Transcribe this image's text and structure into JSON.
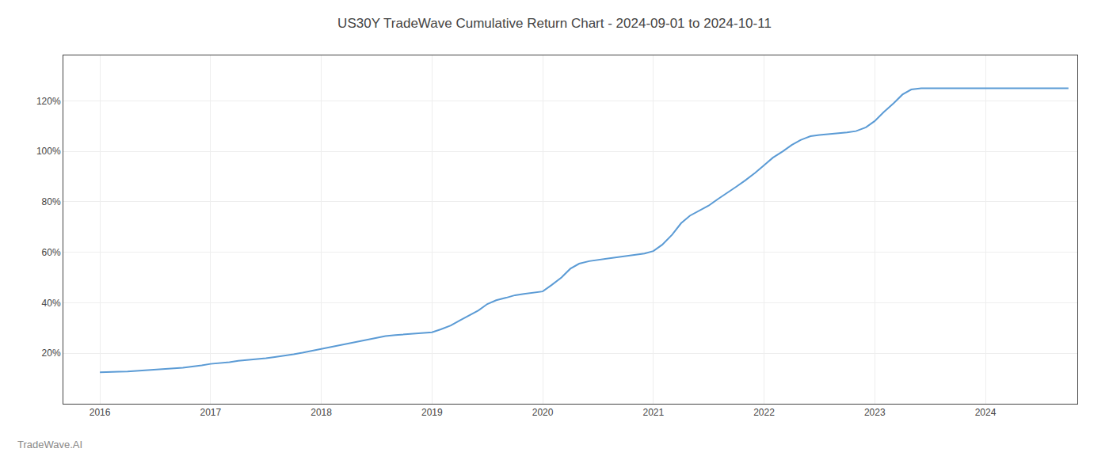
{
  "chart_data": {
    "type": "line",
    "title": "US30Y TradeWave Cumulative Return Chart - 2024-09-01 to 2024-10-11",
    "annotations": [
      "TradeWave.AI"
    ],
    "x": [
      2016.0,
      2016.08,
      2016.17,
      2016.25,
      2016.33,
      2016.42,
      2016.5,
      2016.58,
      2016.67,
      2016.75,
      2016.83,
      2016.92,
      2017.0,
      2017.08,
      2017.17,
      2017.25,
      2017.33,
      2017.42,
      2017.5,
      2017.58,
      2017.67,
      2017.75,
      2017.83,
      2017.92,
      2018.0,
      2018.08,
      2018.17,
      2018.25,
      2018.33,
      2018.42,
      2018.5,
      2018.58,
      2018.67,
      2018.75,
      2018.83,
      2018.92,
      2019.0,
      2019.08,
      2019.17,
      2019.25,
      2019.33,
      2019.42,
      2019.5,
      2019.58,
      2019.67,
      2019.75,
      2019.83,
      2019.92,
      2020.0,
      2020.08,
      2020.17,
      2020.25,
      2020.33,
      2020.42,
      2020.5,
      2020.58,
      2020.67,
      2020.75,
      2020.83,
      2020.92,
      2021.0,
      2021.08,
      2021.17,
      2021.25,
      2021.33,
      2021.42,
      2021.5,
      2021.58,
      2021.67,
      2021.75,
      2021.83,
      2021.92,
      2022.0,
      2022.08,
      2022.17,
      2022.25,
      2022.33,
      2022.42,
      2022.5,
      2022.58,
      2022.67,
      2022.75,
      2022.83,
      2022.92,
      2023.0,
      2023.08,
      2023.17,
      2023.25,
      2023.33,
      2023.42,
      2023.5,
      2023.58,
      2023.67,
      2023.75,
      2023.83,
      2023.92,
      2024.0,
      2024.08,
      2024.17,
      2024.25,
      2024.33,
      2024.42,
      2024.5,
      2024.58,
      2024.67,
      2024.75
    ],
    "values": [
      12.5,
      12.5,
      12.7,
      12.8,
      13.0,
      13.2,
      13.5,
      13.8,
      14.0,
      14.3,
      14.7,
      15.2,
      15.8,
      16.1,
      16.5,
      17.0,
      17.3,
      17.6,
      18.0,
      18.5,
      19.0,
      19.6,
      20.2,
      21.0,
      21.8,
      22.5,
      23.2,
      24.0,
      24.8,
      25.5,
      26.3,
      26.8,
      27.2,
      27.5,
      27.8,
      28.0,
      28.3,
      29.5,
      31.0,
      33.0,
      35.0,
      37.0,
      39.5,
      41.0,
      42.0,
      43.0,
      43.5,
      44.0,
      44.5,
      47.0,
      50.0,
      53.5,
      55.5,
      56.5,
      57.0,
      57.5,
      58.0,
      58.5,
      59.0,
      59.5,
      60.5,
      63.0,
      67.0,
      71.5,
      74.5,
      76.5,
      78.5,
      81.0,
      83.5,
      86.0,
      88.5,
      91.5,
      94.5,
      97.5,
      100.0,
      102.5,
      104.5,
      106.0,
      106.5,
      106.8,
      107.0,
      107.5,
      108.0,
      109.5,
      112.0,
      115.5,
      119.0,
      122.5,
      124.5,
      125.0,
      125.0,
      125.0,
      125.0,
      125.0,
      125.0,
      125.0,
      125.0,
      125.0,
      125.0,
      125.0,
      125.0,
      125.0,
      125.0,
      125.0,
      125.0,
      125.0
    ],
    "color": "#5b9bd5",
    "xlim": [
      2015.67,
      2024.83
    ],
    "ylim": [
      0,
      138
    ],
    "xticks": [
      2016,
      2017,
      2018,
      2019,
      2020,
      2021,
      2022,
      2023,
      2024
    ],
    "yticks": [
      {
        "value": 20,
        "label": "20%"
      },
      {
        "value": 40,
        "label": "40%"
      },
      {
        "value": 60,
        "label": "60%"
      },
      {
        "value": 80,
        "label": "80%"
      },
      {
        "value": 100,
        "label": "100%"
      },
      {
        "value": 120,
        "label": "120%"
      }
    ],
    "grid": true
  }
}
